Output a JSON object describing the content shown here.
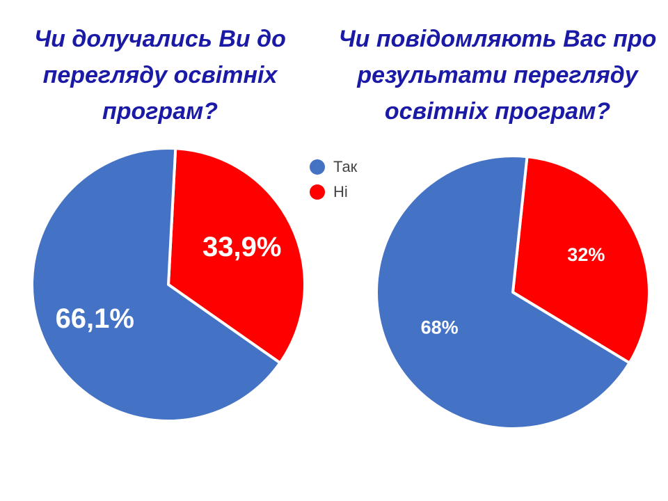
{
  "colors": {
    "tak": "#4472c4",
    "ni": "#ff0000",
    "title": "#1a1aa6"
  },
  "legend": [
    {
      "label": "Так",
      "color": "#4472c4"
    },
    {
      "label": "Ні",
      "color": "#ff0000"
    }
  ],
  "chart_data": [
    {
      "type": "pie",
      "title_lines": [
        "Чи долучались Ви до",
        "перегляду освітніх",
        "програм?"
      ],
      "categories": [
        "Так",
        "Ні"
      ],
      "values": [
        66.1,
        33.9
      ],
      "labels": [
        "66,1%",
        "33,9%"
      ]
    },
    {
      "type": "pie",
      "title_lines": [
        "Чи повідомляють Вас про",
        "результати перегляду",
        "освітніх програм?"
      ],
      "categories": [
        "Так",
        "Ні"
      ],
      "values": [
        68,
        32
      ],
      "labels": [
        "68%",
        "32%"
      ]
    }
  ]
}
